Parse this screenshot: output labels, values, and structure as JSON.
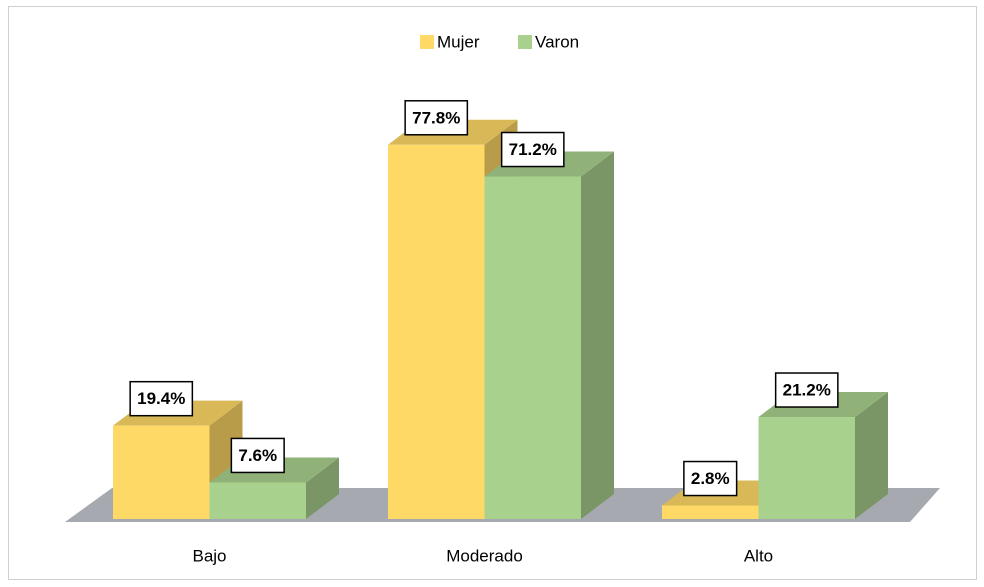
{
  "chart_data": {
    "type": "bar3d",
    "categories": [
      "Bajo",
      "Moderado",
      "Alto"
    ],
    "series": [
      {
        "name": "Mujer",
        "color": "#ffd966",
        "values": [
          19.4,
          77.8,
          2.8
        ],
        "value_labels": [
          "19.4%",
          "77.8%",
          "2.8%"
        ]
      },
      {
        "name": "Varon",
        "color": "#a9d18e",
        "values": [
          7.6,
          71.2,
          21.2
        ],
        "value_labels": [
          "7.6%",
          "71.2%",
          "21.2%"
        ]
      }
    ],
    "legend": "top"
  }
}
